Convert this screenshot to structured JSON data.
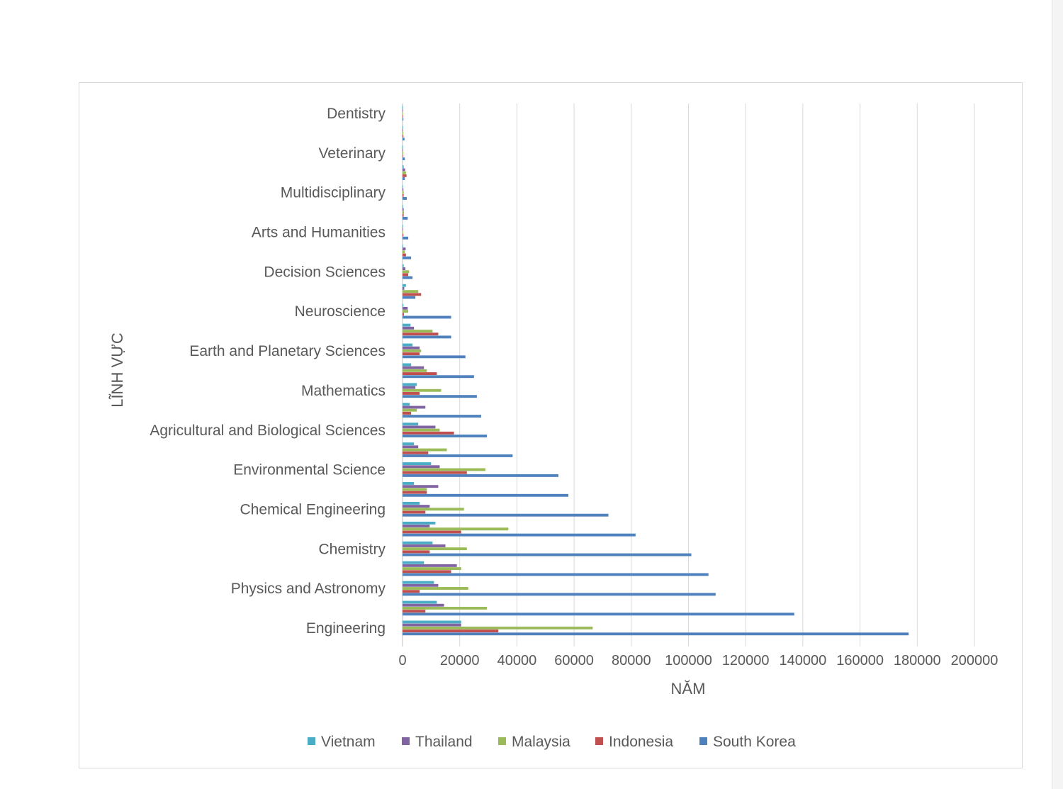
{
  "chart_data": {
    "type": "bar",
    "orientation": "horizontal",
    "title": "",
    "xlabel": "NĂM",
    "ylabel": "LĨNH VỰC",
    "xlim": [
      0,
      200000
    ],
    "xticks": [
      "0",
      "20000",
      "40000",
      "60000",
      "80000",
      "100000",
      "120000",
      "140000",
      "160000",
      "180000",
      "200000"
    ],
    "grid": true,
    "legend_position": "bottom",
    "categories": [
      "Engineering",
      "",
      "Physics and Astronomy",
      "",
      "Chemistry",
      "",
      "Chemical Engineering",
      "",
      "Environmental Science",
      "",
      "Agricultural and Biological Sciences",
      "",
      "Mathematics",
      "",
      "Earth and Planetary Sciences",
      "",
      "Neuroscience",
      "",
      "Decision Sciences",
      "",
      "Arts and Humanities",
      "",
      "Multidisciplinary",
      "",
      "Veterinary",
      "",
      "Dentistry"
    ],
    "series": [
      {
        "name": "Vietnam",
        "color": "#4bacc6",
        "values": [
          20500,
          12000,
          11000,
          7500,
          10500,
          11500,
          6000,
          4000,
          10000,
          4000,
          5500,
          2500,
          5000,
          3000,
          3500,
          2800,
          300,
          1200,
          400,
          200,
          100,
          100,
          100,
          400,
          100,
          150,
          50
        ]
      },
      {
        "name": "Thailand",
        "color": "#8064a2",
        "values": [
          20500,
          14500,
          12500,
          19000,
          15000,
          9500,
          9500,
          12500,
          13000,
          5500,
          11500,
          8000,
          4500,
          7500,
          6000,
          4000,
          1800,
          600,
          1000,
          1100,
          200,
          400,
          300,
          900,
          200,
          200,
          50
        ]
      },
      {
        "name": "Malaysia",
        "color": "#9bbb59",
        "values": [
          66500,
          29500,
          23000,
          20500,
          22500,
          37000,
          21500,
          8500,
          29000,
          15500,
          13000,
          5000,
          13500,
          8500,
          6500,
          10500,
          2000,
          5500,
          2300,
          800,
          200,
          500,
          400,
          1200,
          300,
          300,
          100
        ]
      },
      {
        "name": "Indonesia",
        "color": "#c0504d",
        "values": [
          33500,
          8000,
          6000,
          17000,
          9500,
          20500,
          8000,
          8500,
          22500,
          9000,
          18000,
          3000,
          6000,
          12000,
          6000,
          12500,
          500,
          6500,
          2000,
          1200,
          300,
          400,
          400,
          1400,
          200,
          300,
          100
        ]
      },
      {
        "name": "South Korea",
        "color": "#4f81bd",
        "values": [
          177000,
          137000,
          109500,
          107000,
          101000,
          81500,
          72000,
          58000,
          54500,
          38500,
          29500,
          27500,
          26000,
          25000,
          22000,
          17000,
          17000,
          4500,
          3500,
          3000,
          2000,
          1800,
          1500,
          800,
          800,
          700,
          300
        ]
      }
    ]
  }
}
